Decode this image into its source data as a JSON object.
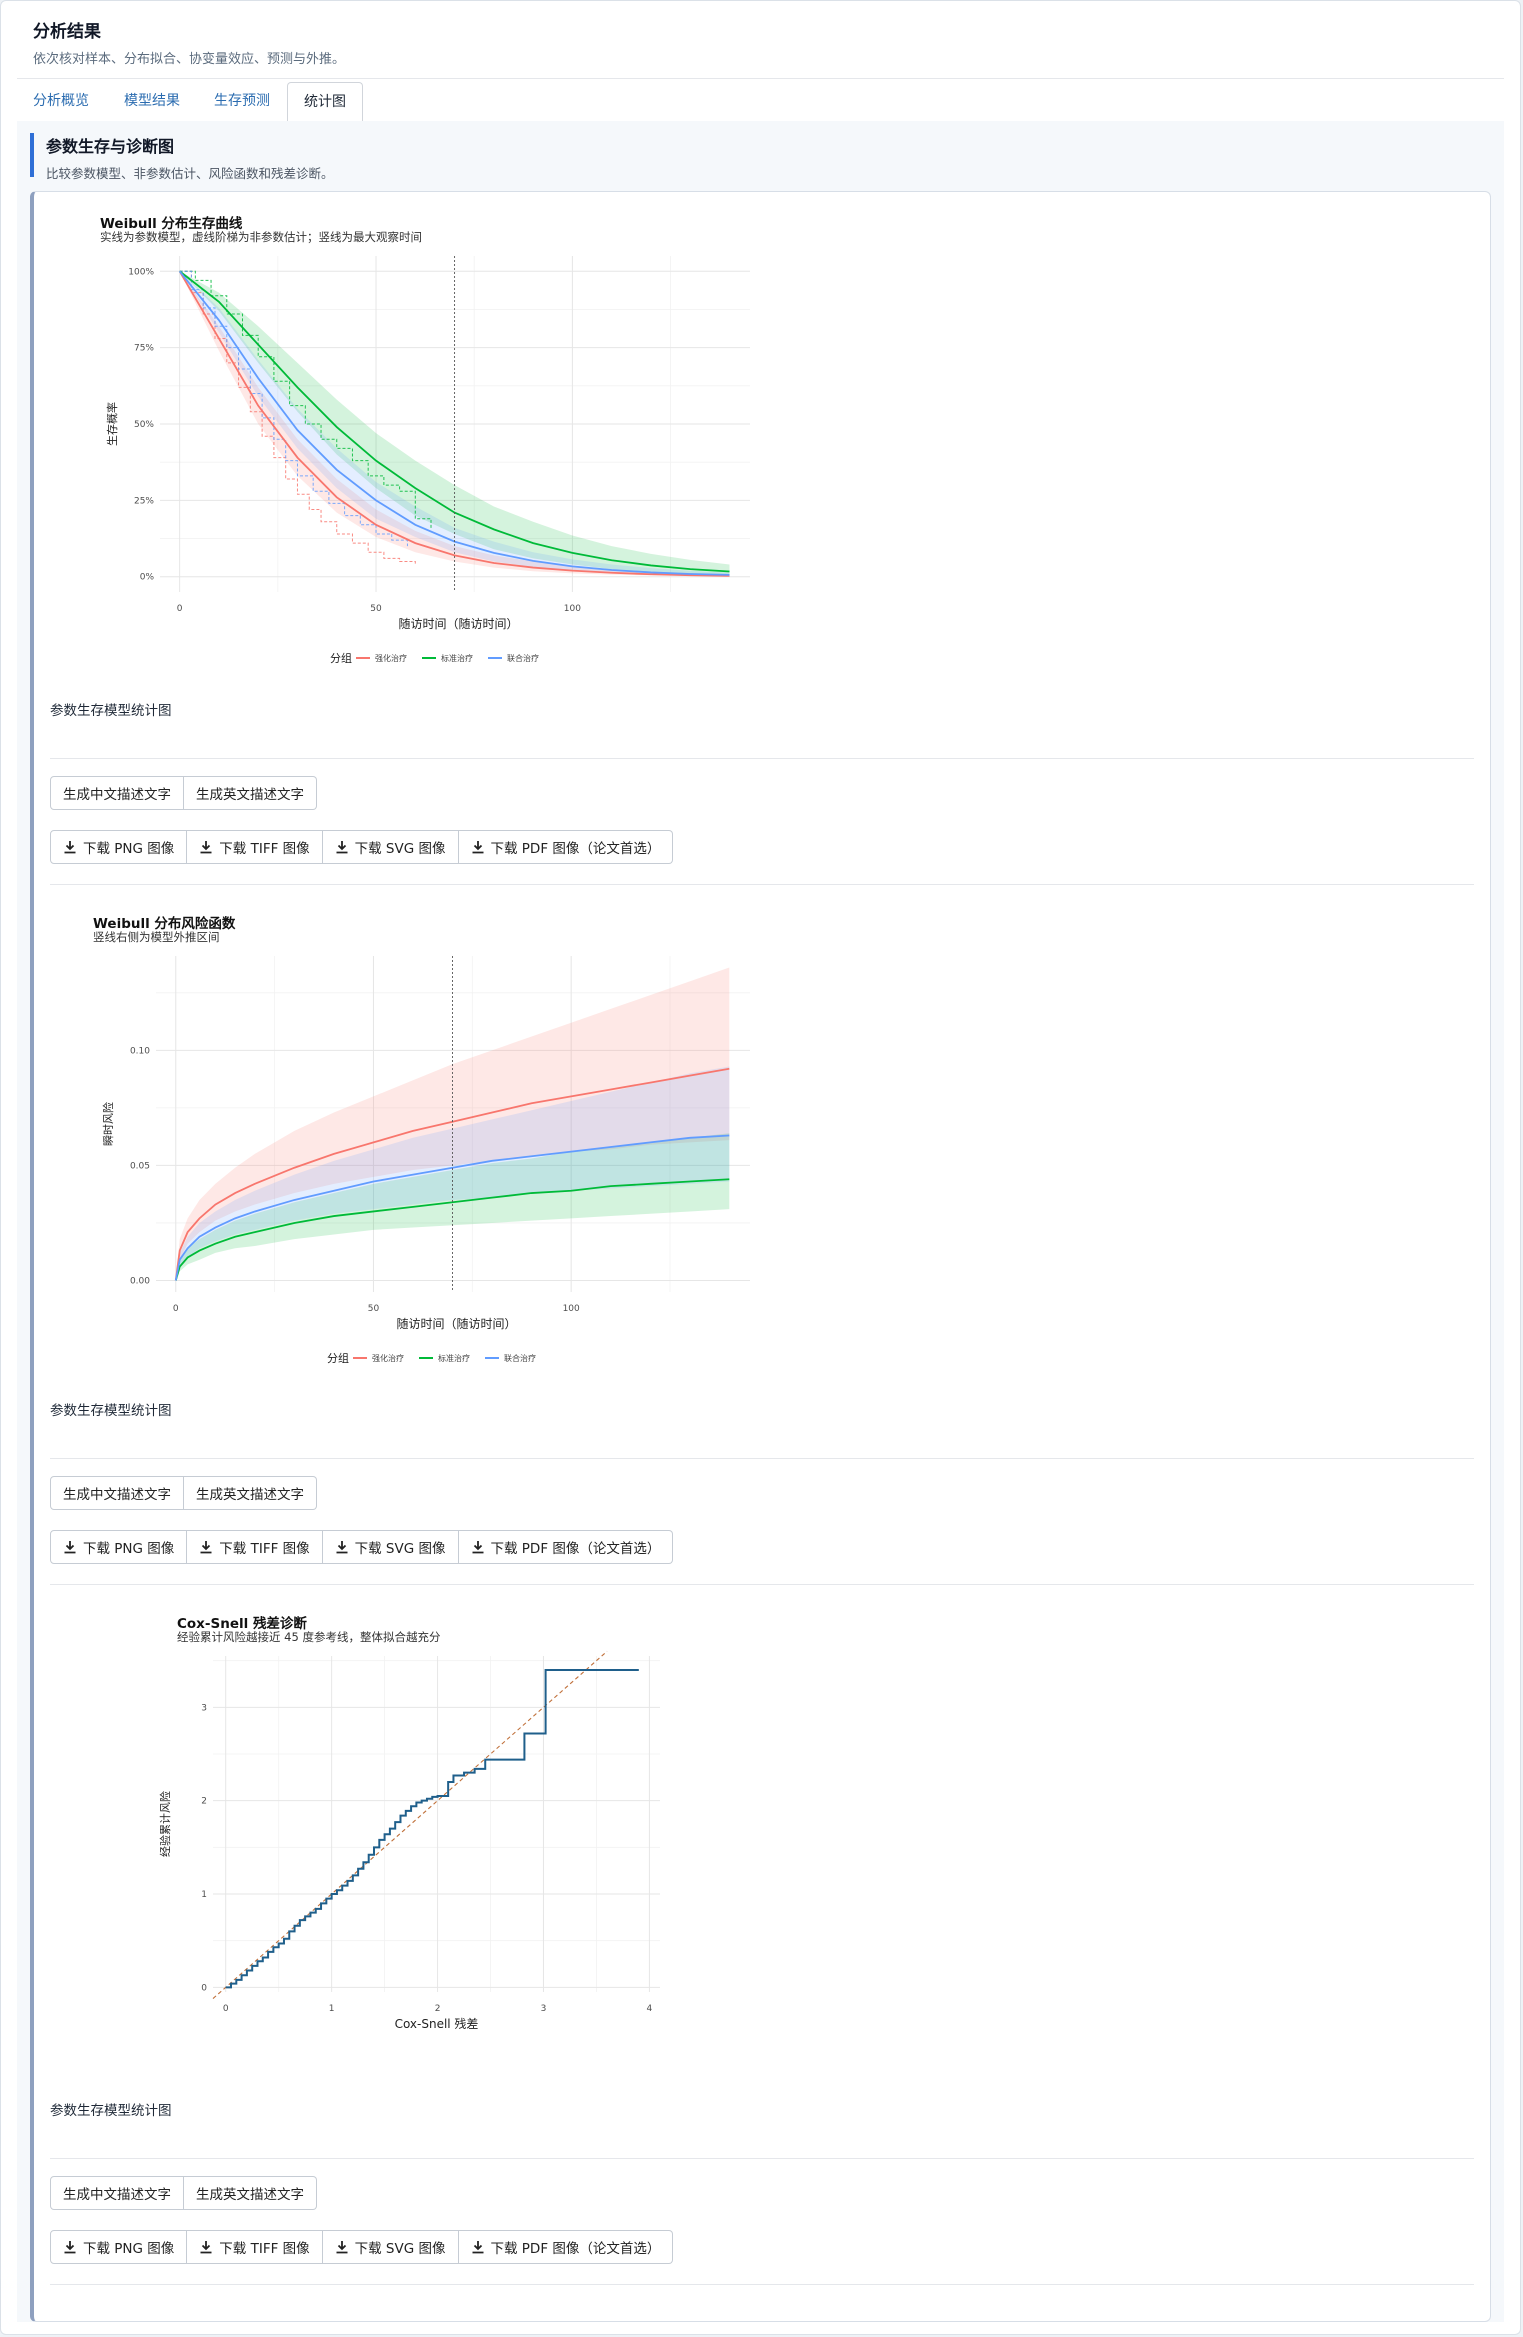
{
  "header": {
    "title": "分析结果",
    "subtitle": "依次核对样本、分布拟合、协变量效应、预测与外推。"
  },
  "tabs": [
    {
      "label": "分析概览"
    },
    {
      "label": "模型结果"
    },
    {
      "label": "生存预测"
    },
    {
      "label": "统计图"
    }
  ],
  "section": {
    "title": "参数生存与诊断图",
    "desc": "比较参数模型、非参数估计、风险函数和残差诊断。"
  },
  "buttons": {
    "cn_text": "生成中文描述文字",
    "en_text": "生成英文描述文字",
    "png": "下载 PNG 图像",
    "tiff": "下载 TIFF 图像",
    "svg": "下载 SVG 图像",
    "pdf": "下载 PDF 图像（论文首选）"
  },
  "figures": [
    {
      "title": "Weibull 分布生存曲线",
      "subtitle": "实线为参数模型，虚线阶梯为非参数估计；竖线为最大观察时间",
      "caption": "参数生存模型统计图"
    },
    {
      "title": "Weibull 分布风险函数",
      "subtitle": "竖线右侧为模型外推区间",
      "caption": "参数生存模型统计图"
    },
    {
      "title": "Cox-Snell 残差诊断",
      "subtitle": "经验累计风险越接近 45 度参考线，整体拟合越充分",
      "caption": "参数生存模型统计图"
    }
  ],
  "legend": {
    "title": "分组",
    "items": [
      "强化治疗",
      "标准治疗",
      "联合治疗"
    ]
  },
  "colors": {
    "red": "#f8766d",
    "green": "#00ba38",
    "blue": "#619cff",
    "residual": "#1f5f8b",
    "reference": "#c0703a",
    "accent": "#2f6fd6"
  },
  "chart_data": [
    {
      "type": "line",
      "title": "Weibull 分布生存曲线",
      "subtitle": "实线为参数模型，虚线阶梯为非参数估计；竖线为最大观察时间",
      "xlabel": "随访时间（随访时间）",
      "ylabel": "生存概率",
      "xlim": [
        -5,
        147
      ],
      "ylim": [
        -0.05,
        1.05
      ],
      "x_ticks": [
        0,
        50,
        100
      ],
      "x_tick_labels": [
        "0",
        "50",
        "100"
      ],
      "y_ticks": [
        0,
        0.25,
        0.5,
        0.75,
        1
      ],
      "y_tick_labels": [
        "0%",
        "25%",
        "50%",
        "75%",
        "100%"
      ],
      "vline": 70,
      "legend_title": "分组",
      "legend_position": "bottom",
      "grid": true,
      "x": [
        0,
        10,
        20,
        30,
        40,
        50,
        60,
        70,
        80,
        90,
        100,
        110,
        120,
        130,
        140
      ],
      "series": [
        {
          "name": "强化治疗",
          "color": "#f8766d",
          "values": [
            1.0,
            0.78,
            0.56,
            0.39,
            0.26,
            0.17,
            0.11,
            0.07,
            0.045,
            0.03,
            0.02,
            0.013,
            0.008,
            0.005,
            0.003
          ],
          "lower": [
            1.0,
            0.74,
            0.5,
            0.33,
            0.21,
            0.13,
            0.08,
            0.05,
            0.03,
            0.018,
            0.011,
            0.007,
            0.004,
            0.003,
            0.002
          ],
          "upper": [
            1.0,
            0.82,
            0.62,
            0.45,
            0.32,
            0.22,
            0.15,
            0.1,
            0.07,
            0.05,
            0.035,
            0.025,
            0.017,
            0.012,
            0.008
          ]
        },
        {
          "name": "标准治疗",
          "color": "#00ba38",
          "values": [
            1.0,
            0.9,
            0.76,
            0.62,
            0.49,
            0.38,
            0.29,
            0.21,
            0.155,
            0.11,
            0.078,
            0.054,
            0.037,
            0.025,
            0.017
          ],
          "lower": [
            1.0,
            0.87,
            0.7,
            0.54,
            0.4,
            0.29,
            0.2,
            0.14,
            0.09,
            0.06,
            0.04,
            0.025,
            0.016,
            0.01,
            0.006
          ],
          "upper": [
            1.0,
            0.93,
            0.82,
            0.7,
            0.58,
            0.47,
            0.38,
            0.3,
            0.23,
            0.18,
            0.135,
            0.1,
            0.075,
            0.055,
            0.04
          ]
        },
        {
          "name": "联合治疗",
          "color": "#619cff",
          "values": [
            1.0,
            0.84,
            0.65,
            0.48,
            0.35,
            0.25,
            0.17,
            0.115,
            0.078,
            0.052,
            0.034,
            0.022,
            0.014,
            0.009,
            0.006
          ],
          "lower": [
            1.0,
            0.8,
            0.59,
            0.42,
            0.29,
            0.19,
            0.13,
            0.08,
            0.05,
            0.032,
            0.02,
            0.012,
            0.007,
            0.004,
            0.003
          ],
          "upper": [
            1.0,
            0.88,
            0.71,
            0.55,
            0.42,
            0.31,
            0.23,
            0.16,
            0.115,
            0.08,
            0.057,
            0.04,
            0.028,
            0.019,
            0.013
          ]
        }
      ],
      "km": [
        {
          "name": "强化治疗",
          "x": [
            0,
            3,
            6,
            9,
            12,
            15,
            18,
            21,
            24,
            27,
            30,
            33,
            36,
            40,
            44,
            48,
            52,
            56,
            60
          ],
          "values": [
            1.0,
            0.93,
            0.86,
            0.78,
            0.7,
            0.62,
            0.54,
            0.46,
            0.39,
            0.32,
            0.27,
            0.22,
            0.18,
            0.14,
            0.11,
            0.08,
            0.06,
            0.05,
            0.04
          ]
        },
        {
          "name": "标准治疗",
          "x": [
            0,
            4,
            8,
            12,
            16,
            20,
            24,
            28,
            32,
            36,
            40,
            44,
            48,
            52,
            56,
            60,
            64
          ],
          "values": [
            1.0,
            0.97,
            0.92,
            0.86,
            0.79,
            0.72,
            0.64,
            0.56,
            0.5,
            0.45,
            0.42,
            0.38,
            0.33,
            0.3,
            0.28,
            0.19,
            0.16
          ]
        },
        {
          "name": "联合治疗",
          "x": [
            0,
            3,
            6,
            9,
            12,
            15,
            18,
            21,
            24,
            27,
            30,
            34,
            38,
            42,
            46,
            50,
            54,
            58
          ],
          "values": [
            1.0,
            0.94,
            0.88,
            0.82,
            0.75,
            0.68,
            0.6,
            0.52,
            0.45,
            0.38,
            0.33,
            0.28,
            0.24,
            0.2,
            0.17,
            0.14,
            0.12,
            0.1
          ]
        }
      ]
    },
    {
      "type": "line",
      "title": "Weibull 分布风险函数",
      "subtitle": "竖线右侧为模型外推区间",
      "xlabel": "随访时间（随访时间）",
      "ylabel": "瞬时风险",
      "xlim": [
        -5,
        147
      ],
      "ylim": [
        -0.005,
        0.141
      ],
      "x_ticks": [
        0,
        50,
        100
      ],
      "x_tick_labels": [
        "0",
        "50",
        "100"
      ],
      "y_ticks": [
        0,
        0.05,
        0.1
      ],
      "y_tick_labels": [
        "0.00",
        "0.05",
        "0.10"
      ],
      "vline": 70,
      "legend_title": "分组",
      "legend_position": "bottom",
      "grid": true,
      "x": [
        0,
        1,
        3,
        6,
        10,
        15,
        20,
        30,
        40,
        50,
        60,
        70,
        80,
        90,
        100,
        110,
        120,
        130,
        140
      ],
      "series": [
        {
          "name": "强化治疗",
          "color": "#f8766d",
          "values": [
            0.0,
            0.013,
            0.021,
            0.027,
            0.033,
            0.038,
            0.042,
            0.049,
            0.055,
            0.06,
            0.065,
            0.069,
            0.073,
            0.077,
            0.08,
            0.083,
            0.086,
            0.089,
            0.092
          ],
          "lower": [
            0.0,
            0.009,
            0.016,
            0.021,
            0.026,
            0.03,
            0.033,
            0.038,
            0.042,
            0.045,
            0.048,
            0.05,
            0.052,
            0.054,
            0.056,
            0.057,
            0.059,
            0.06,
            0.061
          ],
          "upper": [
            0.0,
            0.018,
            0.027,
            0.035,
            0.042,
            0.049,
            0.055,
            0.065,
            0.073,
            0.08,
            0.087,
            0.094,
            0.1,
            0.106,
            0.112,
            0.118,
            0.124,
            0.13,
            0.136
          ]
        },
        {
          "name": "标准治疗",
          "color": "#00ba38",
          "values": [
            0.0,
            0.006,
            0.01,
            0.013,
            0.016,
            0.019,
            0.021,
            0.025,
            0.028,
            0.03,
            0.032,
            0.034,
            0.036,
            0.038,
            0.039,
            0.041,
            0.042,
            0.043,
            0.044
          ],
          "lower": [
            0.0,
            0.004,
            0.007,
            0.009,
            0.012,
            0.014,
            0.015,
            0.018,
            0.02,
            0.022,
            0.023,
            0.024,
            0.025,
            0.026,
            0.027,
            0.028,
            0.029,
            0.03,
            0.031
          ],
          "upper": [
            0.0,
            0.009,
            0.014,
            0.018,
            0.022,
            0.026,
            0.029,
            0.034,
            0.038,
            0.042,
            0.045,
            0.048,
            0.051,
            0.053,
            0.056,
            0.058,
            0.06,
            0.062,
            0.064
          ]
        },
        {
          "name": "联合治疗",
          "color": "#619cff",
          "values": [
            0.0,
            0.009,
            0.014,
            0.019,
            0.023,
            0.027,
            0.03,
            0.035,
            0.039,
            0.043,
            0.046,
            0.049,
            0.052,
            0.054,
            0.056,
            0.058,
            0.06,
            0.062,
            0.063
          ],
          "lower": [
            0.0,
            0.006,
            0.01,
            0.014,
            0.017,
            0.02,
            0.022,
            0.026,
            0.029,
            0.031,
            0.033,
            0.035,
            0.036,
            0.038,
            0.039,
            0.04,
            0.041,
            0.042,
            0.043
          ],
          "upper": [
            0.0,
            0.012,
            0.019,
            0.025,
            0.03,
            0.035,
            0.039,
            0.046,
            0.052,
            0.057,
            0.062,
            0.066,
            0.07,
            0.074,
            0.078,
            0.082,
            0.086,
            0.09,
            0.093
          ]
        }
      ]
    },
    {
      "type": "line",
      "title": "Cox-Snell 残差诊断",
      "subtitle": "经验累计风险越接近 45 度参考线，整体拟合越充分",
      "xlabel": "Cox-Snell 残差",
      "ylabel": "经验累计风险",
      "xlim": [
        -0.12,
        4.1
      ],
      "ylim": [
        -0.05,
        3.55
      ],
      "x_ticks": [
        0,
        1,
        2,
        3,
        4
      ],
      "x_tick_labels": [
        "0",
        "1",
        "2",
        "3",
        "4"
      ],
      "y_ticks": [
        0,
        1,
        2,
        3
      ],
      "y_tick_labels": [
        "0",
        "1",
        "2",
        "3"
      ],
      "grid": true,
      "reference_line": {
        "x": [
          -0.12,
          3.6
        ],
        "y": [
          -0.12,
          3.6
        ]
      },
      "series": [
        {
          "name": "",
          "color": "#1f5f8b",
          "x": [
            0.0,
            0.05,
            0.1,
            0.15,
            0.2,
            0.25,
            0.3,
            0.35,
            0.4,
            0.45,
            0.5,
            0.55,
            0.6,
            0.65,
            0.7,
            0.75,
            0.8,
            0.85,
            0.9,
            0.95,
            1.0,
            1.05,
            1.1,
            1.15,
            1.2,
            1.25,
            1.3,
            1.35,
            1.4,
            1.45,
            1.5,
            1.55,
            1.6,
            1.65,
            1.7,
            1.75,
            1.8,
            1.85,
            1.9,
            1.95,
            2.0,
            2.1,
            2.15,
            2.25,
            2.35,
            2.45,
            2.82,
            3.02,
            3.9
          ],
          "values": [
            0.0,
            0.04,
            0.08,
            0.13,
            0.18,
            0.23,
            0.28,
            0.32,
            0.38,
            0.43,
            0.47,
            0.52,
            0.6,
            0.66,
            0.72,
            0.76,
            0.8,
            0.84,
            0.9,
            0.95,
            1.0,
            1.04,
            1.09,
            1.14,
            1.2,
            1.27,
            1.34,
            1.42,
            1.5,
            1.58,
            1.64,
            1.7,
            1.77,
            1.84,
            1.89,
            1.94,
            1.98,
            2.0,
            2.02,
            2.04,
            2.05,
            2.2,
            2.27,
            2.3,
            2.34,
            2.44,
            2.72,
            3.4,
            3.4
          ]
        }
      ]
    }
  ]
}
